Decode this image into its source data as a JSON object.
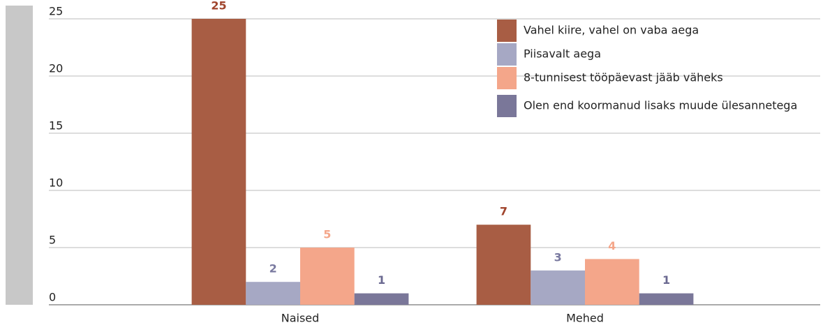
{
  "chart_data": {
    "type": "bar",
    "categories": [
      "Naised",
      "Mehed"
    ],
    "series": [
      {
        "name": "Vahel kiire, vahel on vaba aega",
        "color": "#a85d44",
        "label_color": "#a0442c",
        "values": [
          25,
          7
        ]
      },
      {
        "name": "Piisavalt aega",
        "color": "#a6a8c4",
        "label_color": "#7a7aa0",
        "values": [
          2,
          3
        ]
      },
      {
        "name": "8-tunnisest tööpäevast jääb väheks",
        "color": "#f4a68a",
        "label_color": "#f4a68a",
        "values": [
          5,
          4
        ]
      },
      {
        "name": "Olen end koormanud lisaks muude ülesannetega",
        "color": "#7a7799",
        "label_color": "#6a6890",
        "values": [
          1,
          1
        ]
      }
    ],
    "ylim": [
      0,
      25
    ],
    "yticks": [
      0,
      5,
      10,
      15,
      20,
      25
    ],
    "grid": true,
    "legend": "top-right"
  }
}
